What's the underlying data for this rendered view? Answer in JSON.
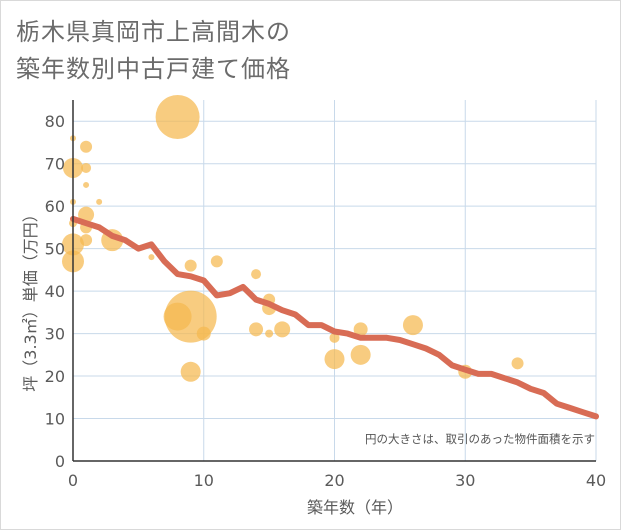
{
  "title_lines": [
    "栃木県真岡市上高間木の",
    "築年数別中古戸建て価格"
  ],
  "chart_data": {
    "type": "scatter",
    "title": "栃木県真岡市上高間木の築年数別中古戸建て価格",
    "xlabel": "築年数（年）",
    "ylabel": "坪（3.3㎡）単価（万円）",
    "xlim": [
      0,
      40
    ],
    "ylim": [
      0,
      85
    ],
    "x_ticks": [
      0,
      10,
      20,
      30,
      40
    ],
    "y_ticks": [
      0,
      10,
      20,
      30,
      40,
      50,
      60,
      70,
      80
    ],
    "grid": true,
    "note": "円の大きさは、取引のあった物件面積を示す",
    "colors": {
      "bubble": "#f5b94f",
      "trend": "#d86c55",
      "grid": "#c8d9ea"
    },
    "points": [
      {
        "x": 0,
        "y": 76,
        "size": 3
      },
      {
        "x": 0,
        "y": 69,
        "size": 10
      },
      {
        "x": 0,
        "y": 61,
        "size": 3
      },
      {
        "x": 0,
        "y": 56,
        "size": 4
      },
      {
        "x": 0,
        "y": 51,
        "size": 11
      },
      {
        "x": 0,
        "y": 47,
        "size": 11
      },
      {
        "x": 1,
        "y": 74,
        "size": 6
      },
      {
        "x": 1,
        "y": 69,
        "size": 5
      },
      {
        "x": 1,
        "y": 65,
        "size": 3
      },
      {
        "x": 1,
        "y": 58,
        "size": 8
      },
      {
        "x": 1,
        "y": 55,
        "size": 6
      },
      {
        "x": 1,
        "y": 52,
        "size": 6
      },
      {
        "x": 2,
        "y": 61,
        "size": 3
      },
      {
        "x": 3,
        "y": 52,
        "size": 11
      },
      {
        "x": 6,
        "y": 48,
        "size": 3
      },
      {
        "x": 8,
        "y": 81,
        "size": 22
      },
      {
        "x": 8,
        "y": 34,
        "size": 14
      },
      {
        "x": 9,
        "y": 34,
        "size": 26
      },
      {
        "x": 9,
        "y": 46,
        "size": 6
      },
      {
        "x": 9,
        "y": 21,
        "size": 10
      },
      {
        "x": 10,
        "y": 30,
        "size": 7
      },
      {
        "x": 11,
        "y": 47,
        "size": 6
      },
      {
        "x": 14,
        "y": 44,
        "size": 5
      },
      {
        "x": 14,
        "y": 31,
        "size": 7
      },
      {
        "x": 15,
        "y": 38,
        "size": 6
      },
      {
        "x": 15,
        "y": 36,
        "size": 7
      },
      {
        "x": 15,
        "y": 30,
        "size": 4
      },
      {
        "x": 16,
        "y": 31,
        "size": 8
      },
      {
        "x": 20,
        "y": 29,
        "size": 5
      },
      {
        "x": 20,
        "y": 24,
        "size": 10
      },
      {
        "x": 22,
        "y": 31,
        "size": 7
      },
      {
        "x": 22,
        "y": 25,
        "size": 10
      },
      {
        "x": 26,
        "y": 32,
        "size": 10
      },
      {
        "x": 30,
        "y": 21,
        "size": 7
      },
      {
        "x": 34,
        "y": 23,
        "size": 6
      }
    ],
    "trend": {
      "x": [
        0,
        1,
        2,
        3,
        4,
        5,
        6,
        7,
        8,
        9,
        10,
        11,
        12,
        13,
        14,
        15,
        16,
        17,
        18,
        19,
        20,
        21,
        22,
        23,
        24,
        25,
        26,
        27,
        28,
        29,
        30,
        31,
        32,
        33,
        34,
        35,
        36,
        37,
        38,
        39,
        40
      ],
      "y": [
        57,
        56,
        55,
        53,
        52,
        50,
        51,
        47,
        44,
        43.5,
        42.5,
        39,
        39.5,
        41,
        38,
        37,
        35.5,
        34.5,
        32,
        32,
        30.5,
        30,
        29,
        29,
        29,
        28.5,
        27.5,
        26.5,
        25,
        22.5,
        21.5,
        20.5,
        20.5,
        19.5,
        18.5,
        17,
        16,
        13.5,
        12.5,
        11.5,
        10.5
      ]
    }
  }
}
